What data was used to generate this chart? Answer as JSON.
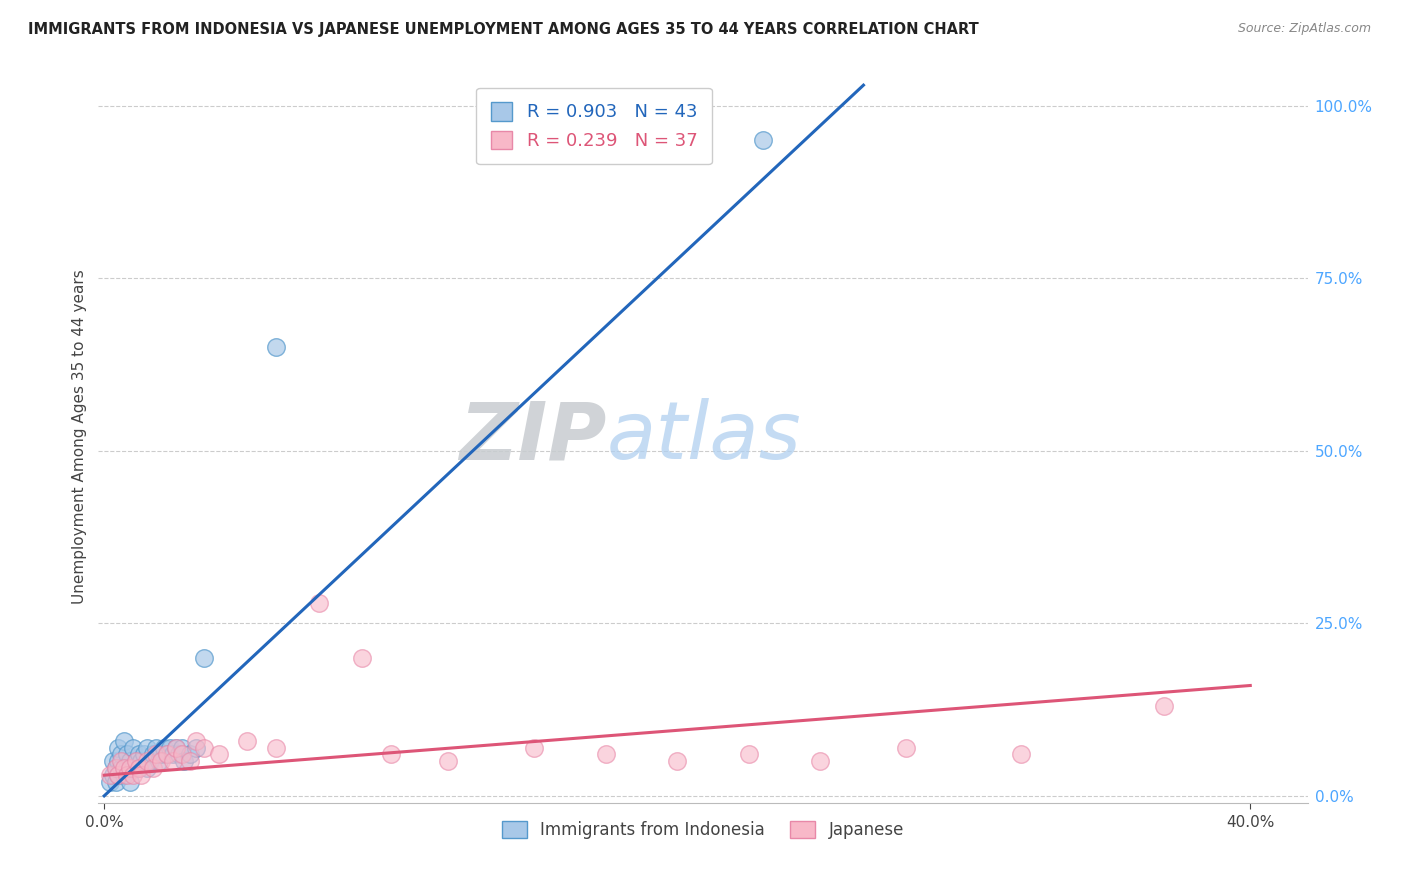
{
  "title": "IMMIGRANTS FROM INDONESIA VS JAPANESE UNEMPLOYMENT AMONG AGES 35 TO 44 YEARS CORRELATION CHART",
  "source": "Source: ZipAtlas.com",
  "ylabel": "Unemployment Among Ages 35 to 44 years",
  "ylabel_ticks_right": [
    "0.0%",
    "25.0%",
    "50.0%",
    "75.0%",
    "100.0%"
  ],
  "ylabel_vals_right": [
    0.0,
    0.25,
    0.5,
    0.75,
    1.0
  ],
  "xtick_labels": [
    "0.0%",
    "40.0%"
  ],
  "xtick_vals": [
    0.0,
    0.4
  ],
  "xlim": [
    -0.002,
    0.42
  ],
  "ylim": [
    -0.01,
    1.05
  ],
  "legend_r1": "R = 0.903",
  "legend_n1": "N = 43",
  "legend_r2": "R = 0.239",
  "legend_n2": "N = 37",
  "color_blue_fill": "#a8c8e8",
  "color_blue_edge": "#5599cc",
  "color_blue_line": "#2266bb",
  "color_pink_fill": "#f8b8c8",
  "color_pink_edge": "#e888a8",
  "color_pink_line": "#dd5577",
  "watermark_zip": "ZIP",
  "watermark_atlas": "atlas",
  "blue_scatter_x": [
    0.002,
    0.003,
    0.003,
    0.004,
    0.004,
    0.005,
    0.005,
    0.005,
    0.006,
    0.006,
    0.007,
    0.007,
    0.008,
    0.008,
    0.009,
    0.009,
    0.01,
    0.01,
    0.011,
    0.012,
    0.012,
    0.013,
    0.014,
    0.015,
    0.015,
    0.016,
    0.017,
    0.018,
    0.019,
    0.02,
    0.021,
    0.022,
    0.023,
    0.024,
    0.025,
    0.026,
    0.027,
    0.028,
    0.03,
    0.032,
    0.035,
    0.06,
    0.23
  ],
  "blue_scatter_y": [
    0.02,
    0.03,
    0.05,
    0.02,
    0.04,
    0.03,
    0.05,
    0.07,
    0.04,
    0.06,
    0.03,
    0.08,
    0.04,
    0.06,
    0.02,
    0.05,
    0.04,
    0.07,
    0.05,
    0.04,
    0.06,
    0.05,
    0.06,
    0.04,
    0.07,
    0.05,
    0.06,
    0.07,
    0.05,
    0.06,
    0.07,
    0.06,
    0.07,
    0.06,
    0.07,
    0.06,
    0.07,
    0.05,
    0.06,
    0.07,
    0.2,
    0.65,
    0.95
  ],
  "pink_scatter_x": [
    0.002,
    0.004,
    0.005,
    0.006,
    0.007,
    0.008,
    0.009,
    0.01,
    0.011,
    0.012,
    0.013,
    0.015,
    0.017,
    0.018,
    0.02,
    0.022,
    0.024,
    0.025,
    0.027,
    0.03,
    0.032,
    0.035,
    0.04,
    0.05,
    0.06,
    0.075,
    0.09,
    0.1,
    0.12,
    0.15,
    0.175,
    0.2,
    0.225,
    0.25,
    0.28,
    0.32,
    0.37
  ],
  "pink_scatter_y": [
    0.03,
    0.04,
    0.03,
    0.05,
    0.04,
    0.03,
    0.04,
    0.03,
    0.05,
    0.04,
    0.03,
    0.05,
    0.04,
    0.06,
    0.05,
    0.06,
    0.05,
    0.07,
    0.06,
    0.05,
    0.08,
    0.07,
    0.06,
    0.08,
    0.07,
    0.28,
    0.2,
    0.06,
    0.05,
    0.07,
    0.06,
    0.05,
    0.06,
    0.05,
    0.07,
    0.06,
    0.13
  ],
  "blue_line_x": [
    0.0,
    0.265
  ],
  "blue_line_y": [
    0.0,
    1.03
  ],
  "pink_line_x": [
    0.0,
    0.4
  ],
  "pink_line_y": [
    0.03,
    0.16
  ]
}
